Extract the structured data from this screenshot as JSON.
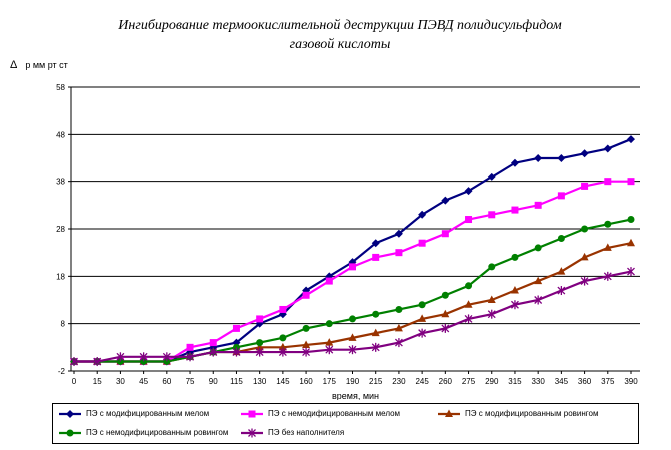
{
  "chart_data": {
    "type": "line",
    "title_line1": "Ингибирование термоокислительной деструкции ПЭВД полидисульфидом",
    "title_line2": "газовой кислоты",
    "ylabel_symbol": "Δ",
    "ylabel": "р мм рт ст",
    "xlabel": "время, мин",
    "ylim": [
      -2,
      58
    ],
    "yticks": [
      -2,
      8,
      18,
      28,
      38,
      48,
      58
    ],
    "grid": "horizontal",
    "legend_position": "bottom",
    "x": [
      0,
      15,
      30,
      45,
      60,
      75,
      90,
      115,
      130,
      145,
      160,
      175,
      190,
      215,
      230,
      245,
      260,
      275,
      290,
      315,
      330,
      345,
      360,
      375,
      390
    ],
    "series": [
      {
        "name": "ПЭ с модифицированным мелом",
        "color": "#000080",
        "marker": "diamond",
        "values": [
          0,
          0,
          0,
          0,
          0,
          2,
          3,
          4,
          8,
          10,
          15,
          18,
          21,
          25,
          27,
          31,
          34,
          36,
          39,
          42,
          43,
          43,
          44,
          45,
          47
        ]
      },
      {
        "name": "ПЭ с немодифицированным мелом",
        "color": "#ff00ff",
        "marker": "square",
        "values": [
          0,
          0,
          0,
          0,
          0,
          3,
          4,
          7,
          9,
          11,
          14,
          17,
          20,
          22,
          23,
          25,
          27,
          30,
          31,
          32,
          33,
          35,
          37,
          38,
          38
        ]
      },
      {
        "name": "ПЭ с модифицированным ровингом",
        "color": "#993300",
        "marker": "triangle",
        "values": [
          0,
          0,
          0,
          0,
          0,
          1,
          2,
          2,
          3,
          3,
          3.5,
          4,
          5,
          6,
          7,
          9,
          10,
          12,
          13,
          15,
          17,
          19,
          22,
          24,
          25
        ]
      },
      {
        "name": "ПЭ с немодифицированным ровингом",
        "color": "#008000",
        "marker": "circle",
        "values": [
          0,
          0,
          0,
          0,
          0,
          1,
          2,
          3,
          4,
          5,
          7,
          8,
          9,
          10,
          11,
          12,
          14,
          16,
          20,
          22,
          24,
          26,
          28,
          29,
          30
        ]
      },
      {
        "name": "ПЭ без наполнителя",
        "color": "#800080",
        "marker": "star",
        "values": [
          0,
          0,
          1,
          1,
          1,
          1,
          2,
          2,
          2,
          2,
          2,
          2.5,
          2.5,
          3,
          4,
          6,
          7,
          9,
          10,
          12,
          13,
          15,
          17,
          18,
          19
        ]
      }
    ]
  }
}
